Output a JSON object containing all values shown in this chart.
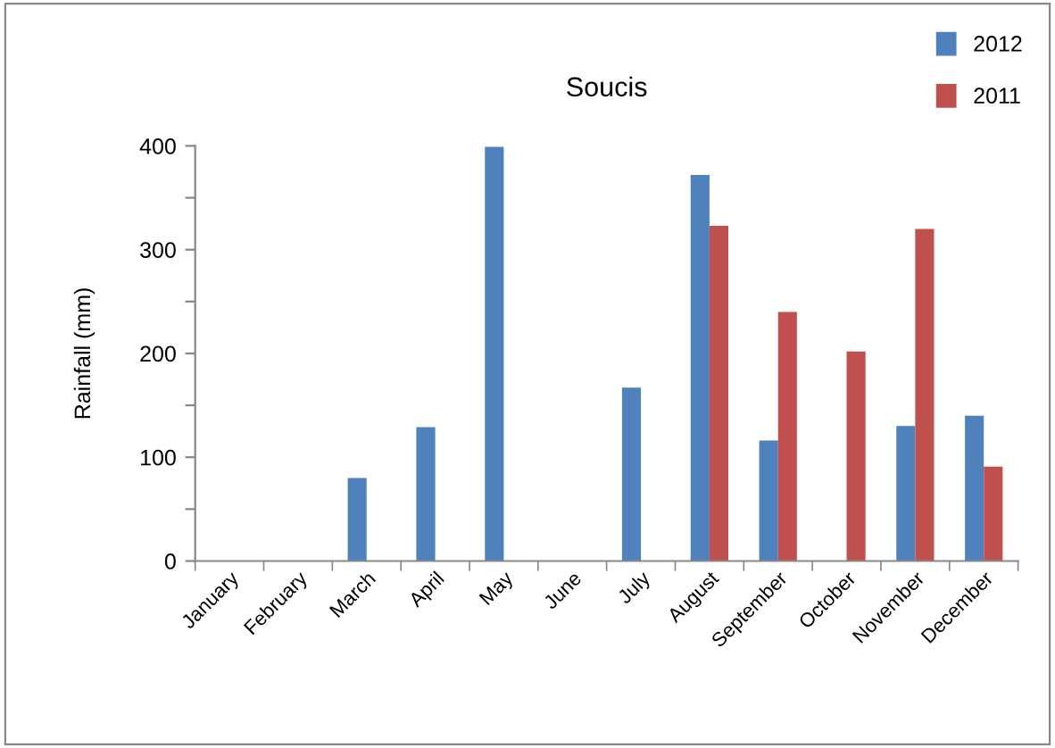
{
  "chart_data": {
    "type": "bar",
    "title": "Soucis",
    "ylabel": "Rainfall (mm)",
    "categories": [
      "January",
      "February",
      "March",
      "April",
      "May",
      "June",
      "July",
      "August",
      "September",
      "October",
      "November",
      "December"
    ],
    "series": [
      {
        "name": "2012",
        "color": "#4f81bd",
        "values": [
          null,
          null,
          80,
          129,
          399,
          null,
          167,
          372,
          116,
          null,
          130,
          140
        ]
      },
      {
        "name": "2011",
        "color": "#c0504d",
        "values": [
          null,
          null,
          null,
          null,
          null,
          null,
          null,
          323,
          240,
          202,
          320,
          91
        ]
      }
    ],
    "ylim": [
      0,
      400
    ],
    "yticks": [
      0,
      {
        "value": 50,
        "label": null
      },
      100,
      {
        "value": 150,
        "label": null
      },
      200,
      {
        "value": 250,
        "label": null
      },
      300,
      {
        "value": 350,
        "label": null
      },
      400
    ],
    "grid": false,
    "legend": "top right"
  }
}
